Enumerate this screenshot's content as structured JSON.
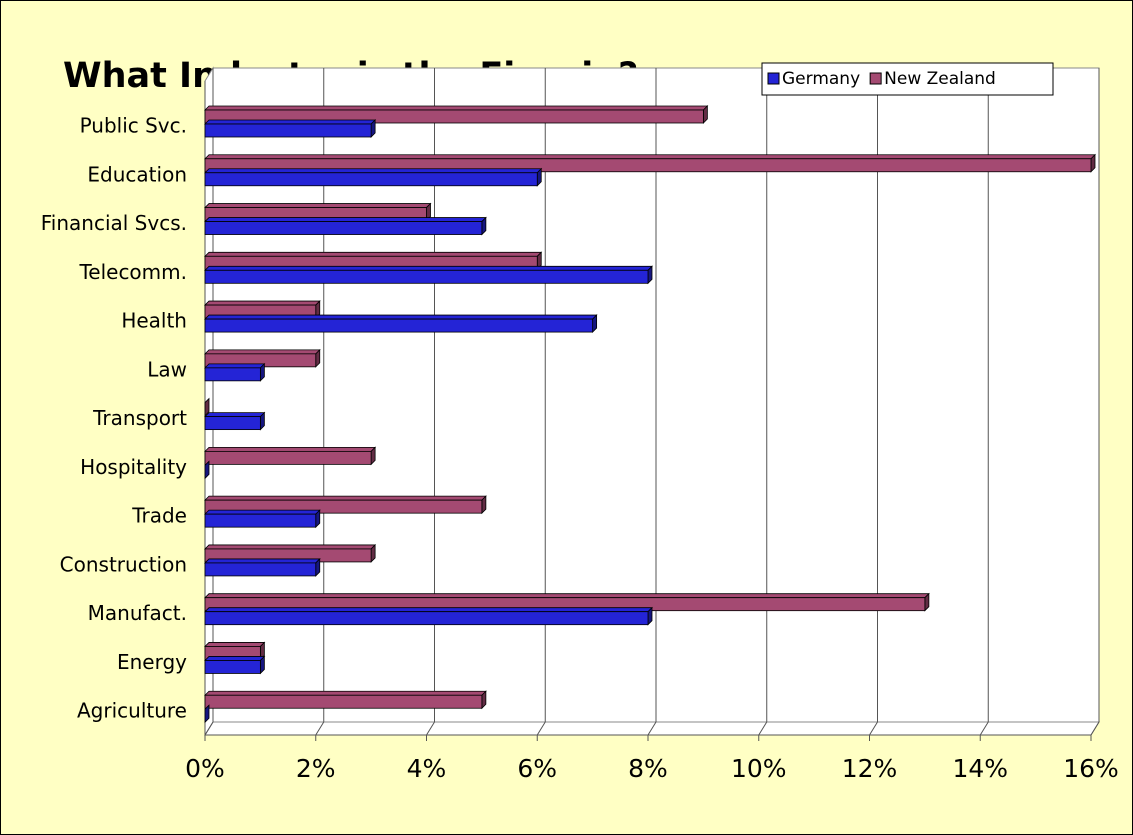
{
  "chart_data": {
    "type": "bar",
    "orientation": "horizontal",
    "title": "What Industry is the Firm in?",
    "categories": [
      "Public Svc.",
      "Education",
      "Financial Svcs.",
      "Telecomm.",
      "Health",
      "Law",
      "Transport",
      "Hospitality",
      "Trade",
      "Construction",
      "Manufact.",
      "Energy",
      "Agriculture"
    ],
    "series": [
      {
        "name": "Germany",
        "color": "#2424d6",
        "values": [
          3,
          6,
          5,
          8,
          7,
          1,
          1,
          0,
          2,
          2,
          8,
          1,
          0
        ]
      },
      {
        "name": "New Zealand",
        "color": "#a44a72",
        "values": [
          9,
          16,
          4,
          6,
          2,
          2,
          0,
          3,
          5,
          3,
          13,
          1,
          5
        ]
      }
    ],
    "xlim": [
      0,
      16
    ],
    "xticks": [
      {
        "value": 0,
        "label": "0%"
      },
      {
        "value": 2,
        "label": "2%"
      },
      {
        "value": 4,
        "label": "4%"
      },
      {
        "value": 6,
        "label": "6%"
      },
      {
        "value": 8,
        "label": "8%"
      },
      {
        "value": 10,
        "label": "10%"
      },
      {
        "value": 12,
        "label": "12%"
      },
      {
        "value": 14,
        "label": "14%"
      },
      {
        "value": 16,
        "label": "16%"
      }
    ],
    "grid": true,
    "legend": "top-right",
    "background": "#ffffc4"
  }
}
